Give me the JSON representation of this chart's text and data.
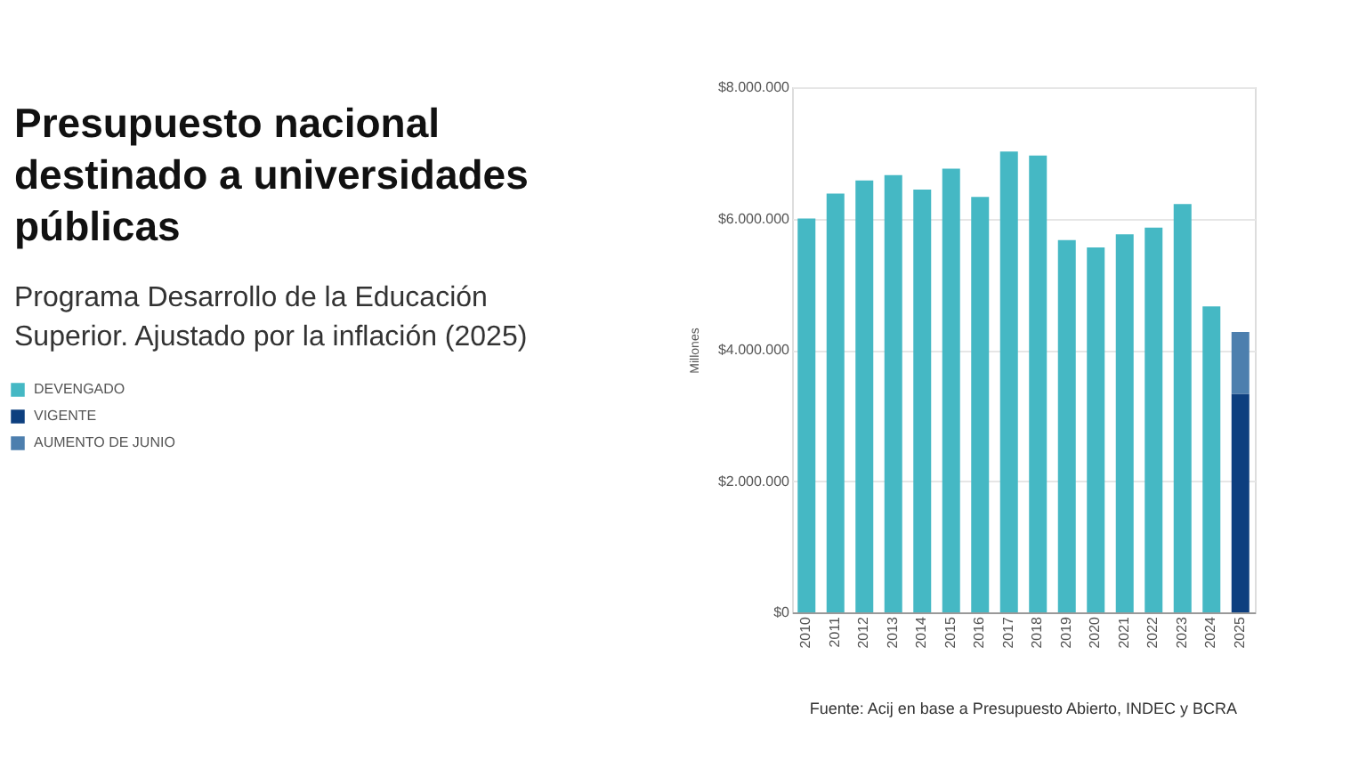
{
  "chart_data": {
    "type": "bar",
    "title": "Presupuesto nacional destinado a universidades públicas",
    "subtitle": "Programa Desarrollo de la Educación Superior. Ajustado por la inflación (2025)",
    "ylabel": "Millones",
    "categories": [
      "2010",
      "2011",
      "2012",
      "2013",
      "2014",
      "2015",
      "2016",
      "2017",
      "2018",
      "2019",
      "2020",
      "2021",
      "2022",
      "2023",
      "2024",
      "2025"
    ],
    "stacked": true,
    "series": [
      {
        "name": "DEVENGADO",
        "color": "#45b8c4",
        "values": [
          6000000,
          6380000,
          6580000,
          6660000,
          6440000,
          6760000,
          6330000,
          7020000,
          6960000,
          5670000,
          5560000,
          5760000,
          5860000,
          6220000,
          4660000,
          null
        ]
      },
      {
        "name": "VIGENTE",
        "color": "#0d3f7f",
        "values": [
          null,
          null,
          null,
          null,
          null,
          null,
          null,
          null,
          null,
          null,
          null,
          null,
          null,
          null,
          null,
          3330000
        ]
      },
      {
        "name": "AUMENTO DE JUNIO",
        "color": "#4d7fae",
        "values": [
          null,
          null,
          null,
          null,
          null,
          null,
          null,
          null,
          null,
          null,
          null,
          null,
          null,
          null,
          null,
          940000
        ]
      }
    ],
    "ylim": [
      0,
      8000000
    ],
    "yticks": [
      {
        "value": 0,
        "label": "$0"
      },
      {
        "value": 2000000,
        "label": "$2.000.000"
      },
      {
        "value": 4000000,
        "label": "$4.000.000"
      },
      {
        "value": 6000000,
        "label": "$6.000.000"
      },
      {
        "value": 8000000,
        "label": "$8.000.000"
      }
    ],
    "grid": "y",
    "legend": "left",
    "annotations": [
      "Fuente: Acij en base a Presupuesto Abierto, INDEC y BCRA"
    ]
  }
}
